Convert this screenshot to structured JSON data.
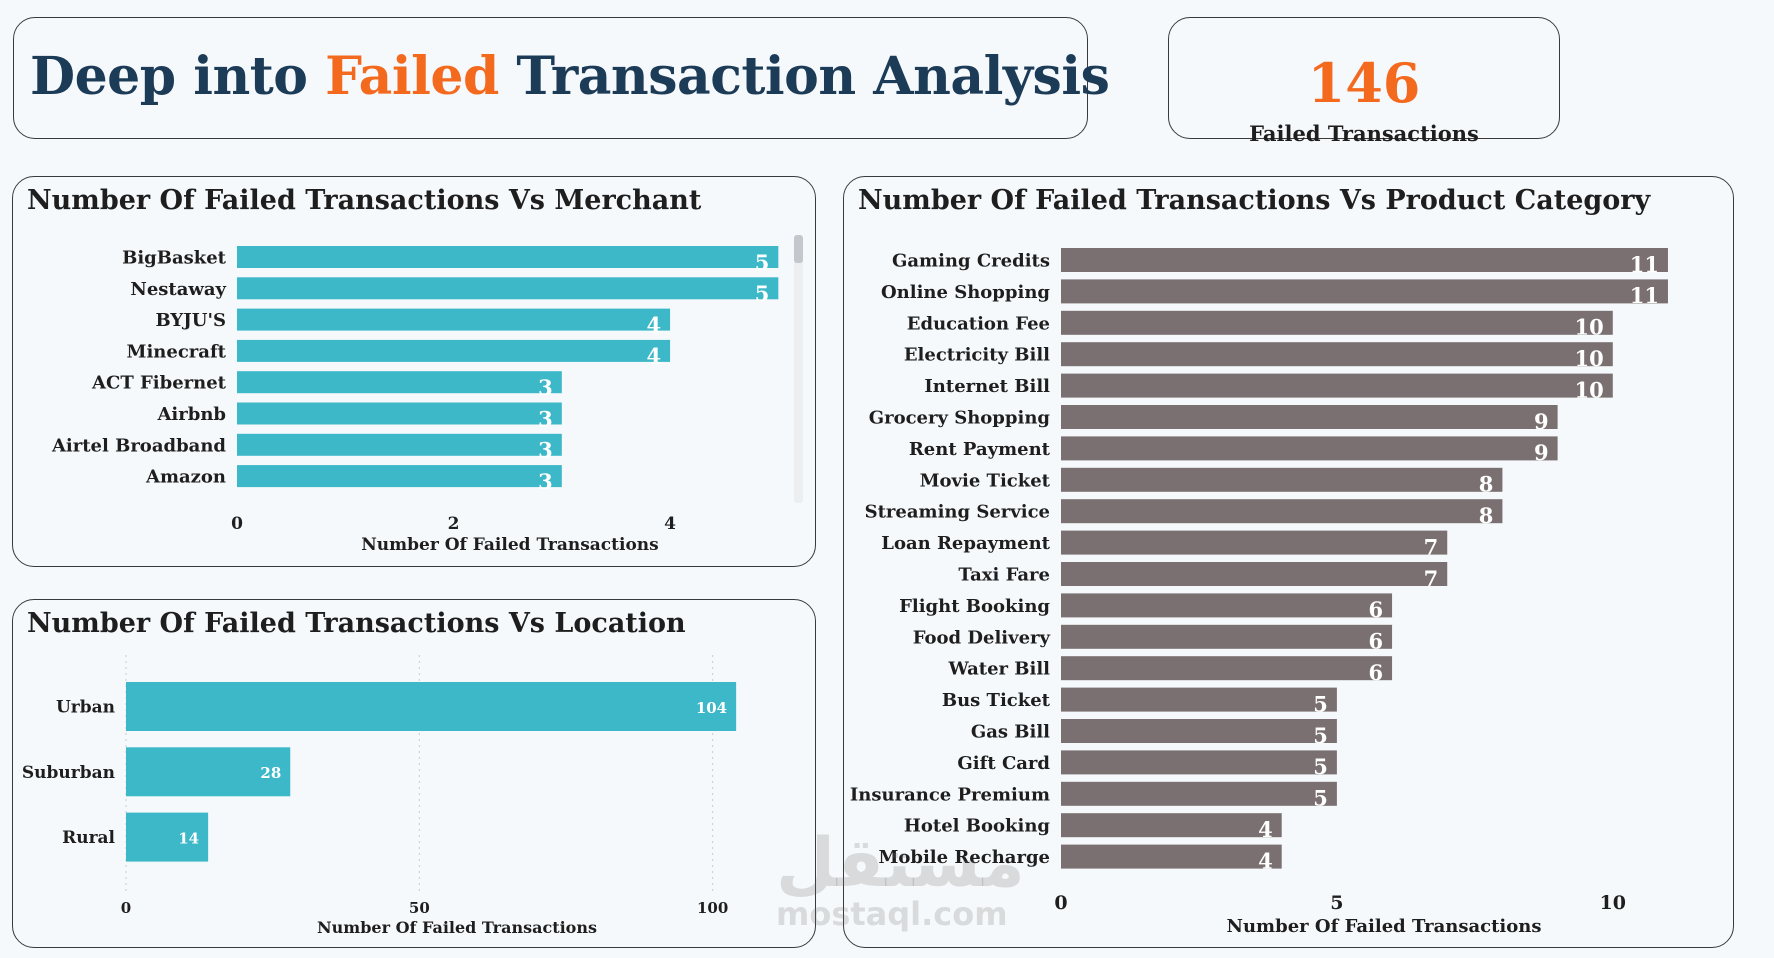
{
  "header": {
    "title_part1": "Deep into ",
    "title_highlight": "Failed",
    "title_part2": " Transaction Analysis",
    "highlight_color": "#f36a1f",
    "title_color": "#1c3b57"
  },
  "kpi": {
    "value": "146",
    "label": "Failed Transactions"
  },
  "watermark": {
    "arabic": "مستقل",
    "latin": "mostaql.com"
  },
  "chart_data": [
    {
      "type": "bar",
      "orientation": "horizontal",
      "title": "Number Of Failed Transactions Vs Merchant",
      "categories": [
        "BigBasket",
        "Nestaway",
        "BYJU'S",
        "Minecraft",
        "ACT Fibernet",
        "Airbnb",
        "Airtel Broadband",
        "Amazon"
      ],
      "values": [
        5,
        5,
        4,
        4,
        3,
        3,
        3,
        3
      ],
      "xlabel": "Number Of Failed Transactions",
      "ylabel": "",
      "xlim": [
        0,
        5.2
      ],
      "xticks": [
        0,
        2,
        4
      ],
      "color": "#3db8c9",
      "grid": false,
      "scrollbar": true
    },
    {
      "type": "bar",
      "orientation": "horizontal",
      "title": "Number Of Failed Transactions Vs Location",
      "categories": [
        "Urban",
        "Suburban",
        "Rural"
      ],
      "values": [
        104,
        28,
        14
      ],
      "xlabel": "Number Of Failed Transactions",
      "ylabel": "",
      "xlim": [
        0,
        105
      ],
      "xticks": [
        0,
        50,
        100
      ],
      "color": "#3db8c9",
      "grid": true
    },
    {
      "type": "bar",
      "orientation": "horizontal",
      "title": "Number Of Failed Transactions Vs Product Category",
      "categories": [
        "Gaming Credits",
        "Online Shopping",
        "Education Fee",
        "Electricity Bill",
        "Internet Bill",
        "Grocery Shopping",
        "Rent Payment",
        "Movie Ticket",
        "Streaming Service",
        "Loan Repayment",
        "Taxi Fare",
        "Flight Booking",
        "Food Delivery",
        "Water Bill",
        "Bus Ticket",
        "Gas Bill",
        "Gift Card",
        "Insurance Premium",
        "Hotel Booking",
        "Mobile Recharge"
      ],
      "values": [
        11,
        11,
        10,
        10,
        10,
        9,
        9,
        8,
        8,
        7,
        7,
        6,
        6,
        6,
        5,
        5,
        5,
        5,
        4,
        4
      ],
      "xlabel": "Number Of Failed Transactions",
      "ylabel": "",
      "xlim": [
        0,
        11.2
      ],
      "xticks": [
        0,
        5,
        10
      ],
      "color": "#7a7071",
      "grid": false
    }
  ]
}
